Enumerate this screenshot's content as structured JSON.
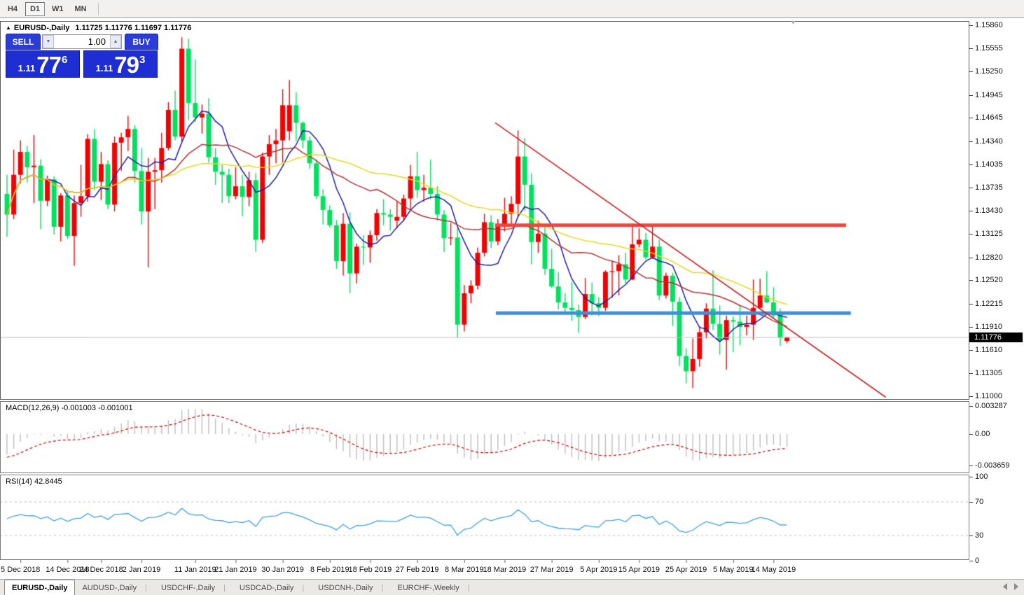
{
  "toolbar": {
    "timeframes": [
      {
        "label": "H4",
        "active": false
      },
      {
        "label": "D1",
        "active": true
      },
      {
        "label": "W1",
        "active": false
      },
      {
        "label": "MN",
        "active": false
      }
    ]
  },
  "chart": {
    "symbol": "EURUSD-,Daily",
    "ohlc_text": "1.11725 1.11776 1.11697 1.11776",
    "current_price": "1.11776",
    "marker": "▲"
  },
  "trade_panel": {
    "sell_label": "SELL",
    "buy_label": "BUY",
    "volume": "1.00",
    "sell_price_prefix": "1.11",
    "sell_price_big": "77",
    "sell_price_sup": "6",
    "buy_price_prefix": "1.11",
    "buy_price_big": "79",
    "buy_price_sup": "3"
  },
  "price_axis": {
    "ticks": [
      "1.15860",
      "1.15555",
      "1.15250",
      "1.14945",
      "1.14645",
      "1.14340",
      "1.14035",
      "1.13735",
      "1.13430",
      "1.13125",
      "1.12820",
      "1.12520",
      "1.12215",
      "1.11910",
      "1.11610",
      "1.11305",
      "1.11000"
    ]
  },
  "macd_panel": {
    "label": "MACD(12,26,9) -0.001003 -0.001001",
    "axis": [
      {
        "v": 0.003287,
        "label": "0.003287"
      },
      {
        "v": 0,
        "label": "0.00"
      },
      {
        "v": -0.003659,
        "label": "-0.003659"
      }
    ]
  },
  "rsi_panel": {
    "label": "RSI(14) 42.8445",
    "axis": [
      {
        "v": 100,
        "label": "100"
      },
      {
        "v": 70,
        "label": "70"
      },
      {
        "v": 30,
        "label": "30"
      },
      {
        "v": 0,
        "label": "0"
      }
    ],
    "levels": [
      70,
      30
    ]
  },
  "tabs": {
    "items": [
      {
        "label": "EURUSD-,Daily",
        "active": true
      },
      {
        "label": "AUDUSD-,Daily",
        "active": false
      },
      {
        "label": "USDCHF-,Daily",
        "active": false
      },
      {
        "label": "USDCAD-,Daily",
        "active": false
      },
      {
        "label": "USDCNH-,Daily",
        "active": false
      },
      {
        "label": "EURCHF-,Weekly",
        "active": false
      }
    ]
  },
  "colors": {
    "bull": "#f40000",
    "bear": "#00e25e",
    "ma_fast": "#1c1ca8",
    "ma_mid": "#b23333",
    "ma_slow": "#e8d71e",
    "macd_hist": "#bdbdbd",
    "macd_signal": "#d40000",
    "rsi_line": "#3e9ee3",
    "rsi_level": "#bbbbbb",
    "resistance": "#f4433a",
    "support": "#3d8fdd",
    "trendline": "#c62222",
    "price_line": "#c0c0c0"
  },
  "chart_data": {
    "type": "candlestick",
    "title": "EURUSD-,Daily",
    "last_price": 1.11776,
    "main_price_range": [
      1.10967,
      1.15912
    ],
    "macd_display": [
      -0.001003,
      -0.001001
    ],
    "macd_axis_range": [
      -0.0045,
      0.00392
    ],
    "rsi_value": 42.8445,
    "rsi_axis_range": [
      0,
      100
    ],
    "moving_averages": [
      {
        "period": 7,
        "color_key": "ma_fast"
      },
      {
        "period": 18,
        "color_key": "ma_mid"
      },
      {
        "period": 36,
        "color_key": "ma_slow"
      }
    ],
    "lines": {
      "resistance": {
        "price": 1.1324,
        "i1": 72.6,
        "i2": 124.8,
        "width": 5
      },
      "support": {
        "price": 1.1209,
        "i1": 72.7,
        "i2": 125.5,
        "width": 5
      },
      "trendline": {
        "i1": 72.6,
        "p1": 1.1458,
        "i2": 130.7,
        "p2": 1.1099,
        "width": 1.6
      }
    },
    "date_ticks": [
      {
        "i": 2,
        "label": "5 Dec 2018"
      },
      {
        "i": 9,
        "label": "14 Dec 2018"
      },
      {
        "i": 14,
        "label": "24 Dec 2018"
      },
      {
        "i": 20,
        "label": "2 Jan 2019"
      },
      {
        "i": 28,
        "label": "11 Jan 2019"
      },
      {
        "i": 34,
        "label": "21 Jan 2019"
      },
      {
        "i": 41,
        "label": "30 Jan 2019"
      },
      {
        "i": 48,
        "label": "8 Feb 2019"
      },
      {
        "i": 54,
        "label": "18 Feb 2019"
      },
      {
        "i": 61,
        "label": "27 Feb 2019"
      },
      {
        "i": 68,
        "label": "8 Mar 2019"
      },
      {
        "i": 74,
        "label": "18 Mar 2019"
      },
      {
        "i": 81,
        "label": "27 Mar 2019"
      },
      {
        "i": 88,
        "label": "5 Apr 2019"
      },
      {
        "i": 94,
        "label": "15 Apr 2019"
      },
      {
        "i": 101,
        "label": "25 Apr 2019"
      },
      {
        "i": 108,
        "label": "5 May 2019"
      },
      {
        "i": 114,
        "label": "14 May 2019"
      }
    ],
    "candles": [
      [
        1.1365,
        1.139,
        1.1309,
        1.1338
      ],
      [
        1.1338,
        1.1423,
        1.1332,
        1.139
      ],
      [
        1.139,
        1.1435,
        1.1379,
        1.142
      ],
      [
        1.142,
        1.1428,
        1.138,
        1.14
      ],
      [
        1.14,
        1.1442,
        1.1353,
        1.1402
      ],
      [
        1.1402,
        1.141,
        1.1319,
        1.1356
      ],
      [
        1.1356,
        1.1389,
        1.1349,
        1.1384
      ],
      [
        1.1384,
        1.1388,
        1.1312,
        1.1322
      ],
      [
        1.1322,
        1.1366,
        1.1303,
        1.1363
      ],
      [
        1.1363,
        1.137,
        1.1306,
        1.131
      ],
      [
        1.131,
        1.1363,
        1.1271,
        1.1353
      ],
      [
        1.1353,
        1.1403,
        1.1335,
        1.1362
      ],
      [
        1.1362,
        1.1443,
        1.1355,
        1.1437
      ],
      [
        1.1437,
        1.145,
        1.137,
        1.1381
      ],
      [
        1.1381,
        1.142,
        1.1357,
        1.1404
      ],
      [
        1.1404,
        1.1409,
        1.1345,
        1.1351
      ],
      [
        1.1351,
        1.144,
        1.1342,
        1.1432
      ],
      [
        1.1432,
        1.1445,
        1.1395,
        1.1439
      ],
      [
        1.1439,
        1.1467,
        1.1421,
        1.145
      ],
      [
        1.145,
        1.1455,
        1.138,
        1.1395
      ],
      [
        1.1395,
        1.1425,
        1.1325,
        1.1342
      ],
      [
        1.1342,
        1.1412,
        1.1269,
        1.1394
      ],
      [
        1.1394,
        1.1412,
        1.1345,
        1.1396
      ],
      [
        1.1396,
        1.1445,
        1.138,
        1.1425
      ],
      [
        1.1425,
        1.1485,
        1.1422,
        1.1475
      ],
      [
        1.1475,
        1.15,
        1.1435,
        1.144
      ],
      [
        1.144,
        1.157,
        1.1434,
        1.1555
      ],
      [
        1.1555,
        1.1568,
        1.1462,
        1.1484
      ],
      [
        1.1484,
        1.1541,
        1.1459,
        1.1465
      ],
      [
        1.1465,
        1.1482,
        1.1444,
        1.147
      ],
      [
        1.147,
        1.149,
        1.1406,
        1.1413
      ],
      [
        1.1413,
        1.1425,
        1.1377,
        1.1394
      ],
      [
        1.1394,
        1.1403,
        1.1353,
        1.139
      ],
      [
        1.139,
        1.1398,
        1.1353,
        1.1362
      ],
      [
        1.1362,
        1.14,
        1.1358,
        1.1375
      ],
      [
        1.1375,
        1.139,
        1.1336,
        1.1361
      ],
      [
        1.1361,
        1.1394,
        1.1349,
        1.1383
      ],
      [
        1.1383,
        1.1392,
        1.1289,
        1.1305
      ],
      [
        1.1305,
        1.1419,
        1.1301,
        1.1414
      ],
      [
        1.1414,
        1.1442,
        1.139,
        1.143
      ],
      [
        1.143,
        1.145,
        1.1405,
        1.1435
      ],
      [
        1.1435,
        1.1502,
        1.1406,
        1.1481
      ],
      [
        1.1447,
        1.1514,
        1.1435,
        1.1481
      ],
      [
        1.1481,
        1.1498,
        1.1434,
        1.1458
      ],
      [
        1.1458,
        1.146,
        1.1425,
        1.1435
      ],
      [
        1.1435,
        1.144,
        1.1398,
        1.1405
      ],
      [
        1.1405,
        1.141,
        1.1358,
        1.1362
      ],
      [
        1.1362,
        1.1371,
        1.1325,
        1.1344
      ],
      [
        1.1344,
        1.135,
        1.1321,
        1.1324
      ],
      [
        1.1324,
        1.1331,
        1.1267,
        1.1277
      ],
      [
        1.1277,
        1.134,
        1.1258,
        1.1326
      ],
      [
        1.1326,
        1.1341,
        1.1235,
        1.1261
      ],
      [
        1.1261,
        1.13,
        1.1248,
        1.1296
      ],
      [
        1.1296,
        1.1311,
        1.1272,
        1.1295
      ],
      [
        1.1295,
        1.1317,
        1.1275,
        1.1311
      ],
      [
        1.1311,
        1.1345,
        1.1304,
        1.134
      ],
      [
        1.134,
        1.1358,
        1.1324,
        1.1338
      ],
      [
        1.1338,
        1.1345,
        1.1317,
        1.1335
      ],
      [
        1.133,
        1.1355,
        1.132,
        1.1335
      ],
      [
        1.1335,
        1.1364,
        1.133,
        1.1359
      ],
      [
        1.1359,
        1.1403,
        1.1345,
        1.1388
      ],
      [
        1.1388,
        1.142,
        1.136,
        1.137
      ],
      [
        1.137,
        1.139,
        1.1355,
        1.1373
      ],
      [
        1.1373,
        1.141,
        1.1358,
        1.1365
      ],
      [
        1.1365,
        1.1375,
        1.133,
        1.1338
      ],
      [
        1.1338,
        1.1344,
        1.1289,
        1.1307
      ],
      [
        1.1307,
        1.1327,
        1.1298,
        1.1308
      ],
      [
        1.1308,
        1.132,
        1.1177,
        1.1194
      ],
      [
        1.1194,
        1.1246,
        1.1185,
        1.1235
      ],
      [
        1.1235,
        1.1252,
        1.1222,
        1.1245
      ],
      [
        1.1245,
        1.1295,
        1.124,
        1.1288
      ],
      [
        1.1288,
        1.1339,
        1.1283,
        1.1328
      ],
      [
        1.1328,
        1.1337,
        1.1294,
        1.1303
      ],
      [
        1.1303,
        1.1332,
        1.1298,
        1.1325
      ],
      [
        1.1325,
        1.136,
        1.1316,
        1.1339
      ],
      [
        1.1339,
        1.1362,
        1.1322,
        1.1352
      ],
      [
        1.1352,
        1.1448,
        1.1335,
        1.1414
      ],
      [
        1.1414,
        1.1438,
        1.1343,
        1.1377
      ],
      [
        1.1377,
        1.1392,
        1.1273,
        1.1302
      ],
      [
        1.1302,
        1.133,
        1.1288,
        1.1313
      ],
      [
        1.1313,
        1.1325,
        1.1259,
        1.1267
      ],
      [
        1.1267,
        1.1293,
        1.1242,
        1.1244
      ],
      [
        1.1244,
        1.1263,
        1.1214,
        1.1223
      ],
      [
        1.1223,
        1.1235,
        1.121,
        1.1216
      ],
      [
        1.1216,
        1.125,
        1.1199,
        1.1213
      ],
      [
        1.1213,
        1.122,
        1.1183,
        1.1204
      ],
      [
        1.1204,
        1.1255,
        1.1201,
        1.1234
      ],
      [
        1.1234,
        1.1249,
        1.1206,
        1.1222
      ],
      [
        1.1222,
        1.123,
        1.1205,
        1.1216
      ],
      [
        1.1216,
        1.1265,
        1.1212,
        1.1263
      ],
      [
        1.1263,
        1.1277,
        1.1229,
        1.1264
      ],
      [
        1.1264,
        1.1285,
        1.1232,
        1.1273
      ],
      [
        1.1273,
        1.1288,
        1.1248,
        1.1253
      ],
      [
        1.1253,
        1.1326,
        1.1252,
        1.1299
      ],
      [
        1.1299,
        1.132,
        1.1295,
        1.1305
      ],
      [
        1.1305,
        1.1314,
        1.1279,
        1.1282
      ],
      [
        1.1282,
        1.1324,
        1.128,
        1.1296
      ],
      [
        1.1296,
        1.1305,
        1.1226,
        1.1232
      ],
      [
        1.1232,
        1.1262,
        1.1228,
        1.1258
      ],
      [
        1.1258,
        1.1262,
        1.1192,
        1.1224
      ],
      [
        1.1224,
        1.123,
        1.114,
        1.1153
      ],
      [
        1.1153,
        1.1163,
        1.1117,
        1.1133
      ],
      [
        1.1133,
        1.1176,
        1.1111,
        1.1149
      ],
      [
        1.1149,
        1.1192,
        1.1139,
        1.1184
      ],
      [
        1.1184,
        1.1222,
        1.1176,
        1.1215
      ],
      [
        1.1215,
        1.1265,
        1.1187,
        1.1195
      ],
      [
        1.1195,
        1.1219,
        1.1155,
        1.1174
      ],
      [
        1.1174,
        1.1206,
        1.1135,
        1.12
      ],
      [
        1.12,
        1.1205,
        1.1158,
        1.1198
      ],
      [
        1.1198,
        1.122,
        1.1167,
        1.1191
      ],
      [
        1.1191,
        1.1206,
        1.118,
        1.1194
      ],
      [
        1.1194,
        1.1253,
        1.1174,
        1.1216
      ],
      [
        1.1216,
        1.1254,
        1.1214,
        1.1232
      ],
      [
        1.1232,
        1.1264,
        1.1222,
        1.1223
      ],
      [
        1.1223,
        1.1243,
        1.1203,
        1.1206
      ],
      [
        1.1208,
        1.1215,
        1.1166,
        1.1177
      ],
      [
        1.11725,
        1.11776,
        1.11697,
        1.11776
      ]
    ]
  }
}
